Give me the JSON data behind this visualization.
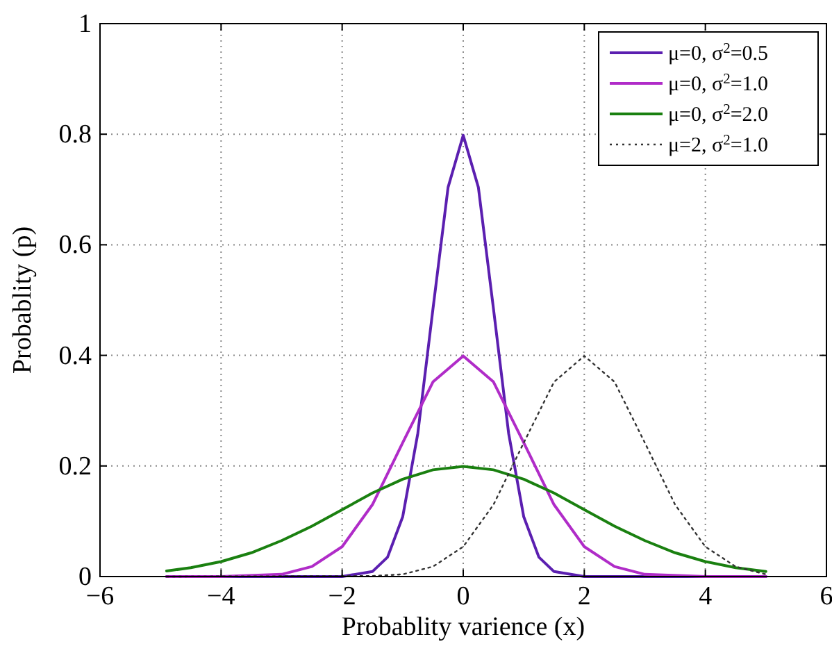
{
  "chart_data": {
    "type": "line",
    "xlabel": "Probablity varience (x)",
    "ylabel": "Probablity (p)",
    "xlim": [
      -6,
      6
    ],
    "xticks": [
      -6,
      -4,
      -2,
      0,
      2,
      4,
      6
    ],
    "ylim": [
      0,
      1
    ],
    "yticks": [
      0,
      0.2,
      0.4,
      0.6,
      0.8,
      1
    ],
    "grid": true,
    "legend": "top right",
    "marker": "none",
    "series": [
      {
        "name": "μ=0, σ$^{2}$=0.5",
        "color": "#5b1fb0",
        "line_style": "solid",
        "x": [
          -4.9,
          -2,
          -1.5,
          -1.25,
          -1,
          -0.75,
          -0.5,
          -0.25,
          0,
          0.25,
          0.5,
          0.75,
          1,
          1.25,
          1.5,
          2,
          5
        ],
        "values": [
          0,
          0,
          0.009,
          0.035,
          0.108,
          0.259,
          0.484,
          0.704,
          0.798,
          0.704,
          0.484,
          0.259,
          0.108,
          0.035,
          0.009,
          0,
          0
        ]
      },
      {
        "name": "μ=0, σ$^{2}$=1.0",
        "color": "#b02cc8",
        "line_style": "solid",
        "x": [
          -4.9,
          -4,
          -3,
          -2.5,
          -2,
          -1.5,
          -1,
          -0.5,
          0,
          0.5,
          1,
          1.5,
          2,
          2.5,
          3,
          4,
          5
        ],
        "values": [
          0,
          0,
          0.004,
          0.018,
          0.054,
          0.13,
          0.242,
          0.352,
          0.399,
          0.352,
          0.242,
          0.13,
          0.054,
          0.018,
          0.004,
          0,
          0
        ]
      },
      {
        "name": "μ=0, σ$^{2}$=2.0",
        "color": "#1a8010",
        "line_style": "solid",
        "x": [
          -4.9,
          -4.5,
          -4,
          -3.5,
          -3,
          -2.5,
          -2,
          -1.5,
          -1,
          -0.5,
          0,
          0.5,
          1,
          1.5,
          2,
          2.5,
          3,
          3.5,
          4,
          4.5,
          5
        ],
        "values": [
          0.01,
          0.016,
          0.027,
          0.043,
          0.065,
          0.091,
          0.121,
          0.151,
          0.176,
          0.193,
          0.199,
          0.193,
          0.176,
          0.151,
          0.121,
          0.091,
          0.065,
          0.043,
          0.027,
          0.016,
          0.009
        ]
      },
      {
        "name": "μ=2, σ$^{2}$=1.0",
        "color": "#333333",
        "line_style": "dotted",
        "x": [
          -4.9,
          -1.5,
          -1,
          -0.5,
          0,
          0.5,
          1,
          1.5,
          2,
          2.5,
          3,
          3.5,
          4,
          4.5,
          5
        ],
        "values": [
          0,
          0.001,
          0.004,
          0.018,
          0.054,
          0.13,
          0.242,
          0.352,
          0.399,
          0.352,
          0.242,
          0.13,
          0.054,
          0.018,
          0.004
        ]
      }
    ]
  }
}
